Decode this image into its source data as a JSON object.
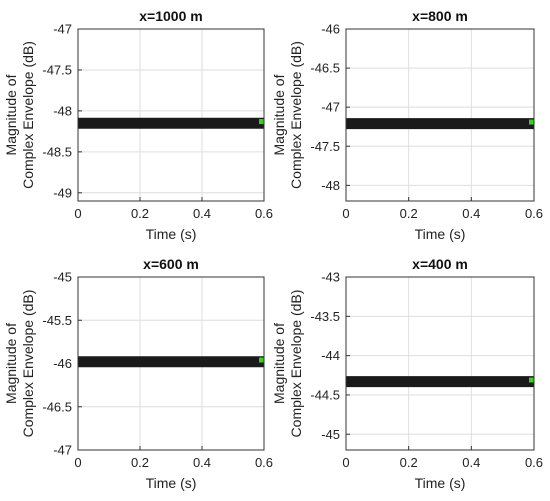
{
  "chart_data": [
    {
      "type": "line",
      "title": "x=1000 m",
      "xlabel": "Time (s)",
      "ylabel": [
        "Magnitude of",
        "Complex Envelope (dB)"
      ],
      "xlim": [
        0,
        0.6
      ],
      "ylim": [
        -49.1,
        -47
      ],
      "xticks": [
        "0",
        "0.2",
        "0.4",
        "0.6"
      ],
      "yticks": [
        "-47",
        "-47.5",
        "-48",
        "-48.5",
        "-49"
      ],
      "grid": true,
      "series": [
        {
          "x": [
            0,
            0.6
          ],
          "y": [
            -48.15,
            -48.15
          ],
          "color": "#1a1a1a"
        }
      ],
      "marker": {
        "x": 0.6,
        "y": -48.13,
        "color": "#39d01f"
      }
    },
    {
      "type": "line",
      "title": "x=800 m",
      "xlabel": "Time (s)",
      "ylabel": [
        "Magnitude of",
        "Complex Envelope (dB)"
      ],
      "xlim": [
        0,
        0.6
      ],
      "ylim": [
        -48.2,
        -46
      ],
      "xticks": [
        "0",
        "0.2",
        "0.4",
        "0.6"
      ],
      "yticks": [
        "-46",
        "-46.5",
        "-47",
        "-47.5",
        "-48"
      ],
      "grid": true,
      "series": [
        {
          "x": [
            0,
            0.6
          ],
          "y": [
            -47.21,
            -47.21
          ],
          "color": "#1a1a1a"
        }
      ],
      "marker": {
        "x": 0.6,
        "y": -47.19,
        "color": "#39d01f"
      }
    },
    {
      "type": "line",
      "title": "x=600 m",
      "xlabel": "Time (s)",
      "ylabel": [
        "Magnitude of",
        "Complex Envelope (dB)"
      ],
      "xlim": [
        0,
        0.6
      ],
      "ylim": [
        -47,
        -45
      ],
      "xticks": [
        "0",
        "0.2",
        "0.4",
        "0.6"
      ],
      "yticks": [
        "-45",
        "-45.5",
        "-46",
        "-46.5",
        "-47"
      ],
      "grid": true,
      "series": [
        {
          "x": [
            0,
            0.6
          ],
          "y": [
            -45.98,
            -45.98
          ],
          "color": "#1a1a1a"
        }
      ],
      "marker": {
        "x": 0.6,
        "y": -45.96,
        "color": "#39d01f"
      }
    },
    {
      "type": "line",
      "title": "x=400 m",
      "xlabel": "Time (s)",
      "ylabel": [
        "Magnitude of",
        "Complex Envelope (dB)"
      ],
      "xlim": [
        0,
        0.6
      ],
      "ylim": [
        -45.2,
        -43
      ],
      "xticks": [
        "0",
        "0.2",
        "0.4",
        "0.6"
      ],
      "yticks": [
        "-43",
        "-43.5",
        "-44",
        "-44.5",
        "-45"
      ],
      "grid": true,
      "series": [
        {
          "x": [
            0,
            0.6
          ],
          "y": [
            -44.33,
            -44.33
          ],
          "color": "#1a1a1a"
        }
      ],
      "marker": {
        "x": 0.6,
        "y": -44.31,
        "color": "#39d01f"
      }
    }
  ]
}
